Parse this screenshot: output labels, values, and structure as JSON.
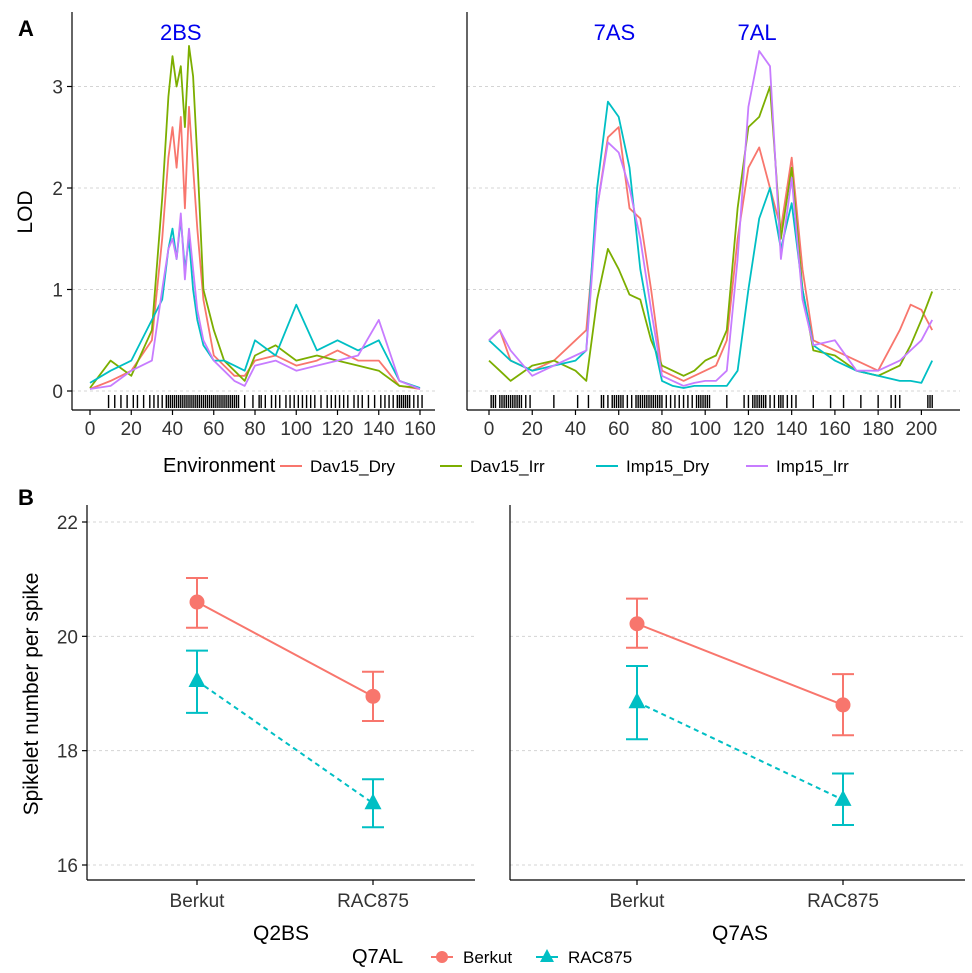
{
  "panel_labels": {
    "a": "A",
    "b": "B"
  },
  "colors": {
    "Dav15_Dry": "#f8766d",
    "Dav15_Irr": "#7cae00",
    "Imp15_Dry": "#00bfc4",
    "Imp15_Irr": "#c77cff",
    "Berkut": "#f8766d",
    "RAC875": "#00bfc4",
    "qtl_label": "#0000ee"
  },
  "chart_data": [
    {
      "type": "line",
      "panel": "A",
      "ylabel": "LOD",
      "ylim": [
        0,
        3.5
      ],
      "y_ticks": [
        "0",
        "1",
        "2",
        "3"
      ],
      "grid": "horizontal",
      "legend": {
        "title": "Environment",
        "position": "bottom",
        "items": [
          "Dav15_Dry",
          "Dav15_Irr",
          "Imp15_Dry",
          "Imp15_Irr"
        ]
      },
      "facets": [
        {
          "id": "2B",
          "xlim": [
            -3,
            166
          ],
          "x_ticks": [
            "0",
            "20",
            "40",
            "60",
            "80",
            "100",
            "120",
            "140",
            "160"
          ],
          "annotations": [
            {
              "text": "2BS",
              "x": 44
            }
          ],
          "markers": [
            9,
            12,
            15,
            18,
            21,
            23,
            26,
            29,
            31,
            33,
            35,
            37,
            38,
            39,
            40,
            41,
            42,
            43,
            44,
            45,
            46,
            47,
            48,
            49,
            50,
            51,
            52,
            53,
            54,
            55,
            56,
            57,
            58,
            59,
            60,
            61,
            62,
            63,
            64,
            65,
            66,
            67,
            68,
            69,
            70,
            71,
            72,
            75,
            79,
            82,
            83,
            85,
            88,
            90,
            92,
            95,
            97,
            99,
            101,
            103,
            105,
            107,
            109,
            112,
            115,
            117,
            119,
            121,
            123,
            125,
            128,
            130,
            132,
            135,
            138,
            141,
            143,
            145,
            147,
            149,
            150,
            151,
            152,
            153,
            154,
            155,
            157,
            159,
            161
          ],
          "series": [
            {
              "name": "Dav15_Dry",
              "x": [
                0,
                10,
                20,
                30,
                35,
                38,
                40,
                42,
                44,
                46,
                48,
                50,
                52,
                55,
                60,
                65,
                70,
                75,
                80,
                90,
                100,
                110,
                120,
                130,
                140,
                150,
                160
              ],
              "y": [
                0.02,
                0.1,
                0.2,
                0.5,
                1.5,
                2.3,
                2.6,
                2.2,
                2.7,
                1.8,
                2.8,
                2.2,
                1.6,
                0.9,
                0.35,
                0.25,
                0.15,
                0.15,
                0.3,
                0.35,
                0.25,
                0.3,
                0.4,
                0.3,
                0.3,
                0.05,
                0.02
              ]
            },
            {
              "name": "Dav15_Irr",
              "x": [
                0,
                10,
                20,
                30,
                35,
                38,
                40,
                42,
                44,
                46,
                48,
                50,
                52,
                55,
                60,
                65,
                70,
                75,
                80,
                90,
                100,
                110,
                120,
                130,
                140,
                150,
                160
              ],
              "y": [
                0.03,
                0.3,
                0.15,
                0.6,
                1.9,
                2.9,
                3.3,
                3.0,
                3.2,
                2.6,
                3.4,
                3.1,
                2.3,
                1.0,
                0.6,
                0.3,
                0.2,
                0.1,
                0.35,
                0.45,
                0.3,
                0.35,
                0.3,
                0.25,
                0.2,
                0.05,
                0.03
              ]
            },
            {
              "name": "Imp15_Dry",
              "x": [
                0,
                10,
                20,
                30,
                35,
                38,
                40,
                42,
                44,
                46,
                48,
                50,
                52,
                55,
                60,
                65,
                70,
                75,
                80,
                90,
                100,
                110,
                120,
                130,
                140,
                150,
                160
              ],
              "y": [
                0.08,
                0.2,
                0.3,
                0.7,
                0.9,
                1.4,
                1.6,
                1.3,
                1.7,
                1.2,
                1.5,
                1.0,
                0.7,
                0.45,
                0.3,
                0.3,
                0.25,
                0.2,
                0.5,
                0.35,
                0.85,
                0.4,
                0.5,
                0.4,
                0.5,
                0.1,
                0.03
              ]
            },
            {
              "name": "Imp15_Irr",
              "x": [
                0,
                10,
                20,
                30,
                35,
                38,
                40,
                42,
                44,
                46,
                48,
                50,
                52,
                55,
                60,
                65,
                70,
                75,
                80,
                90,
                100,
                110,
                120,
                130,
                140,
                150,
                160
              ],
              "y": [
                0.02,
                0.05,
                0.2,
                0.3,
                1.0,
                1.4,
                1.5,
                1.3,
                1.75,
                1.1,
                1.6,
                1.2,
                0.8,
                0.5,
                0.3,
                0.2,
                0.1,
                0.05,
                0.25,
                0.3,
                0.2,
                0.25,
                0.3,
                0.35,
                0.7,
                0.1,
                0.02
              ]
            }
          ]
        },
        {
          "id": "7A",
          "xlim": [
            -5,
            215
          ],
          "x_ticks": [
            "0",
            "20",
            "40",
            "60",
            "80",
            "100",
            "120",
            "140",
            "160",
            "180",
            "200"
          ],
          "annotations": [
            {
              "text": "7AS",
              "x": 58
            },
            {
              "text": "7AL",
              "x": 124
            }
          ],
          "markers": [
            1,
            2,
            3,
            5,
            6,
            7,
            8,
            9,
            10,
            11,
            12,
            13,
            14,
            15,
            17,
            19,
            30,
            41,
            46,
            52,
            53,
            55,
            57,
            58,
            59,
            60,
            61,
            62,
            64,
            66,
            68,
            69,
            70,
            71,
            72,
            73,
            74,
            75,
            76,
            77,
            78,
            79,
            80,
            82,
            84,
            86,
            88,
            90,
            92,
            94,
            96,
            97,
            98,
            99,
            100,
            101,
            102,
            110,
            118,
            120,
            122,
            123,
            124,
            125,
            126,
            127,
            128,
            130,
            132,
            134,
            135,
            136,
            138,
            140,
            142,
            150,
            158,
            164,
            172,
            180,
            186,
            188,
            190,
            203,
            204,
            205
          ],
          "series": [
            {
              "name": "Dav15_Dry",
              "x": [
                0,
                5,
                10,
                20,
                30,
                40,
                45,
                50,
                55,
                60,
                65,
                70,
                75,
                80,
                85,
                90,
                95,
                100,
                105,
                110,
                115,
                120,
                125,
                130,
                135,
                140,
                145,
                150,
                160,
                170,
                180,
                190,
                195,
                200,
                205
              ],
              "y": [
                0.5,
                0.6,
                0.3,
                0.2,
                0.3,
                0.5,
                0.6,
                1.8,
                2.5,
                2.6,
                1.8,
                1.7,
                1.0,
                0.2,
                0.15,
                0.1,
                0.15,
                0.2,
                0.25,
                0.5,
                1.5,
                2.2,
                2.4,
                2.0,
                1.6,
                2.3,
                1.2,
                0.5,
                0.4,
                0.3,
                0.2,
                0.6,
                0.85,
                0.8,
                0.6
              ]
            },
            {
              "name": "Dav15_Irr",
              "x": [
                0,
                5,
                10,
                20,
                30,
                40,
                45,
                50,
                55,
                60,
                65,
                70,
                75,
                80,
                85,
                90,
                95,
                100,
                105,
                110,
                115,
                120,
                125,
                130,
                135,
                140,
                145,
                150,
                160,
                170,
                180,
                190,
                195,
                200,
                205
              ],
              "y": [
                0.3,
                0.2,
                0.1,
                0.25,
                0.3,
                0.2,
                0.1,
                0.9,
                1.4,
                1.2,
                0.95,
                0.9,
                0.5,
                0.25,
                0.2,
                0.15,
                0.2,
                0.3,
                0.35,
                0.6,
                1.8,
                2.6,
                2.7,
                3.0,
                1.5,
                2.2,
                1.0,
                0.4,
                0.35,
                0.2,
                0.15,
                0.25,
                0.45,
                0.7,
                0.98
              ]
            },
            {
              "name": "Imp15_Dry",
              "x": [
                0,
                5,
                10,
                20,
                30,
                40,
                45,
                50,
                55,
                60,
                65,
                70,
                75,
                80,
                85,
                90,
                95,
                100,
                105,
                110,
                115,
                120,
                125,
                130,
                135,
                140,
                145,
                150,
                160,
                170,
                180,
                190,
                195,
                200,
                205
              ],
              "y": [
                0.5,
                0.4,
                0.3,
                0.2,
                0.25,
                0.3,
                0.4,
                2.0,
                2.85,
                2.7,
                2.2,
                1.2,
                0.6,
                0.1,
                0.05,
                0.03,
                0.05,
                0.05,
                0.05,
                0.05,
                0.2,
                1.0,
                1.7,
                2.0,
                1.4,
                1.85,
                1.0,
                0.45,
                0.3,
                0.2,
                0.15,
                0.1,
                0.1,
                0.08,
                0.3
              ]
            },
            {
              "name": "Imp15_Irr",
              "x": [
                0,
                5,
                10,
                20,
                30,
                40,
                45,
                50,
                55,
                60,
                65,
                70,
                75,
                80,
                85,
                90,
                95,
                100,
                105,
                110,
                115,
                120,
                125,
                130,
                135,
                140,
                145,
                150,
                160,
                170,
                180,
                190,
                195,
                200,
                205
              ],
              "y": [
                0.5,
                0.6,
                0.4,
                0.15,
                0.25,
                0.35,
                0.4,
                1.8,
                2.45,
                2.35,
                2.0,
                1.5,
                0.8,
                0.15,
                0.1,
                0.05,
                0.08,
                0.1,
                0.1,
                0.2,
                1.3,
                2.8,
                3.35,
                3.2,
                1.3,
                2.1,
                0.9,
                0.45,
                0.5,
                0.2,
                0.2,
                0.3,
                0.4,
                0.5,
                0.7
              ]
            }
          ]
        }
      ]
    },
    {
      "type": "scatter",
      "panel": "B",
      "ylabel": "Spikelet number per spike",
      "ylim": [
        15.7,
        22.3
      ],
      "y_ticks": [
        "16",
        "18",
        "20",
        "22"
      ],
      "grid": "horizontal",
      "legend": {
        "title": "Q7AL",
        "position": "bottom",
        "items": [
          "Berkut",
          "RAC875"
        ]
      },
      "facets": [
        {
          "xlabel": "Q2BS",
          "categories": [
            "Berkut",
            "RAC875"
          ],
          "series": [
            {
              "name": "Berkut",
              "shape": "circle",
              "line": "solid",
              "values": [
                20.6,
                18.95
              ],
              "lower": [
                20.15,
                18.52
              ],
              "upper": [
                21.02,
                19.38
              ]
            },
            {
              "name": "RAC875",
              "shape": "triangle",
              "line": "dashed",
              "values": [
                19.22,
                17.08
              ],
              "lower": [
                18.66,
                16.66
              ],
              "upper": [
                19.75,
                17.5
              ]
            }
          ]
        },
        {
          "xlabel": "Q7AS",
          "categories": [
            "Berkut",
            "RAC875"
          ],
          "series": [
            {
              "name": "Berkut",
              "shape": "circle",
              "line": "solid",
              "values": [
                20.22,
                18.8
              ],
              "lower": [
                19.8,
                18.27
              ],
              "upper": [
                20.66,
                19.34
              ]
            },
            {
              "name": "RAC875",
              "shape": "triangle",
              "line": "dashed",
              "values": [
                18.85,
                17.14
              ],
              "lower": [
                18.2,
                16.7
              ],
              "upper": [
                19.48,
                17.6
              ]
            }
          ]
        }
      ]
    }
  ]
}
